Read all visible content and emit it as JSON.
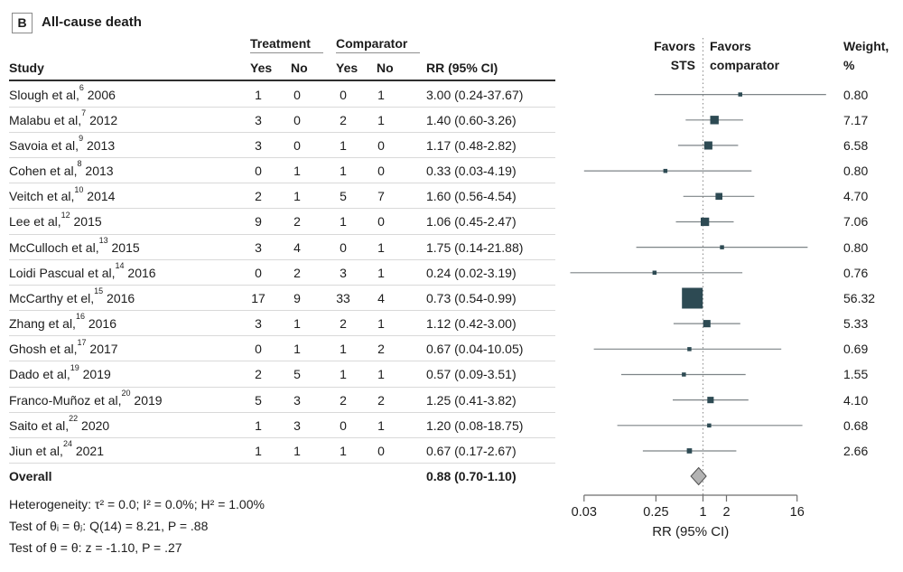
{
  "panel": {
    "label": "B",
    "title": "All-cause death"
  },
  "table": {
    "group_headers": {
      "treatment": "Treatment",
      "comparator": "Comparator"
    },
    "columns": {
      "study": "Study",
      "yes": "Yes",
      "no": "No",
      "rr": "RR (95% CI)"
    },
    "overall_label": "Overall"
  },
  "plot_header": {
    "favors_left": [
      "Favors",
      "STS"
    ],
    "favors_right": [
      "Favors",
      "comparator"
    ],
    "weight": [
      "Weight,",
      "%"
    ]
  },
  "axis": {
    "tick_labels": [
      "0.03",
      "0.25",
      "1",
      "2",
      "16"
    ],
    "label": "RR (95% CI)"
  },
  "footer": {
    "heterogeneity": "Heterogeneity: τ² = 0.0; I² = 0.0%; H² = 1.00%",
    "test_thetas": "Test of θᵢ = θⱼ: Q(14) = 8.21, P = .88",
    "test_z": "Test of θ = θ: z = -1.10, P = .27"
  },
  "colors": {
    "square": "#2d4a53",
    "ci_line": "#7d8487",
    "diamond_fill": "#b3b3b3",
    "diamond_stroke": "#4f4f4f",
    "ref_line": "#909090",
    "axis": "#6e6e6e",
    "text": "#1c1c1c"
  },
  "chart_data": {
    "type": "scatter",
    "subtype": "forest-plot",
    "title": "All-cause death",
    "xlabel": "RR (95% CI)",
    "x_scale": "log",
    "x_ticks": [
      0.03,
      0.25,
      1,
      2,
      16
    ],
    "ref_line": 1,
    "studies": [
      {
        "study": "Slough et al,",
        "ref": "6",
        "year": "2006",
        "t_yes": 1,
        "t_no": 0,
        "c_yes": 0,
        "c_no": 1,
        "rr": 3.0,
        "ci_low": 0.24,
        "ci_high": 37.67,
        "rr_text": "3.00 (0.24-37.67)",
        "weight": 0.8
      },
      {
        "study": "Malabu et al,",
        "ref": "7",
        "year": "2012",
        "t_yes": 3,
        "t_no": 0,
        "c_yes": 2,
        "c_no": 1,
        "rr": 1.4,
        "ci_low": 0.6,
        "ci_high": 3.26,
        "rr_text": "1.40 (0.60-3.26)",
        "weight": 7.17
      },
      {
        "study": "Savoia et al,",
        "ref": "9",
        "year": "2013",
        "t_yes": 3,
        "t_no": 0,
        "c_yes": 1,
        "c_no": 0,
        "rr": 1.17,
        "ci_low": 0.48,
        "ci_high": 2.82,
        "rr_text": "1.17 (0.48-2.82)",
        "weight": 6.58
      },
      {
        "study": "Cohen et al,",
        "ref": "8",
        "year": "2013",
        "t_yes": 0,
        "t_no": 1,
        "c_yes": 1,
        "c_no": 0,
        "rr": 0.33,
        "ci_low": 0.03,
        "ci_high": 4.19,
        "rr_text": "0.33 (0.03-4.19)",
        "weight": 0.8
      },
      {
        "study": "Veitch et al,",
        "ref": "10",
        "year": "2014",
        "t_yes": 2,
        "t_no": 1,
        "c_yes": 5,
        "c_no": 7,
        "rr": 1.6,
        "ci_low": 0.56,
        "ci_high": 4.54,
        "rr_text": "1.60 (0.56-4.54)",
        "weight": 4.7
      },
      {
        "study": "Lee et al,",
        "ref": "12",
        "year": "2015",
        "t_yes": 9,
        "t_no": 2,
        "c_yes": 1,
        "c_no": 0,
        "rr": 1.06,
        "ci_low": 0.45,
        "ci_high": 2.47,
        "rr_text": "1.06 (0.45-2.47)",
        "weight": 7.06
      },
      {
        "study": "McCulloch et al,",
        "ref": "13",
        "year": "2015",
        "t_yes": 3,
        "t_no": 4,
        "c_yes": 0,
        "c_no": 1,
        "rr": 1.75,
        "ci_low": 0.14,
        "ci_high": 21.88,
        "rr_text": "1.75 (0.14-21.88)",
        "weight": 0.8
      },
      {
        "study": "Loidi Pascual et al,",
        "ref": "14",
        "year": "2016",
        "t_yes": 0,
        "t_no": 2,
        "c_yes": 3,
        "c_no": 1,
        "rr": 0.24,
        "ci_low": 0.02,
        "ci_high": 3.19,
        "rr_text": "0.24 (0.02-3.19)",
        "weight": 0.76
      },
      {
        "study": "McCarthy et el,",
        "ref": "15",
        "year": "2016",
        "t_yes": 17,
        "t_no": 9,
        "c_yes": 33,
        "c_no": 4,
        "rr": 0.73,
        "ci_low": 0.54,
        "ci_high": 0.99,
        "rr_text": "0.73 (0.54-0.99)",
        "weight": 56.32
      },
      {
        "study": "Zhang et al,",
        "ref": "16",
        "year": "2016",
        "t_yes": 3,
        "t_no": 1,
        "c_yes": 2,
        "c_no": 1,
        "rr": 1.12,
        "ci_low": 0.42,
        "ci_high": 3.0,
        "rr_text": "1.12 (0.42-3.00)",
        "weight": 5.33
      },
      {
        "study": "Ghosh et al,",
        "ref": "17",
        "year": "2017",
        "t_yes": 0,
        "t_no": 1,
        "c_yes": 1,
        "c_no": 2,
        "rr": 0.67,
        "ci_low": 0.04,
        "ci_high": 10.05,
        "rr_text": "0.67 (0.04-10.05)",
        "weight": 0.69
      },
      {
        "study": "Dado et al,",
        "ref": "19",
        "year": "2019",
        "t_yes": 2,
        "t_no": 5,
        "c_yes": 1,
        "c_no": 1,
        "rr": 0.57,
        "ci_low": 0.09,
        "ci_high": 3.51,
        "rr_text": "0.57 (0.09-3.51)",
        "weight": 1.55
      },
      {
        "study": "Franco-Muñoz et al,",
        "ref": "20",
        "year": "2019",
        "t_yes": 5,
        "t_no": 3,
        "c_yes": 2,
        "c_no": 2,
        "rr": 1.25,
        "ci_low": 0.41,
        "ci_high": 3.82,
        "rr_text": "1.25 (0.41-3.82)",
        "weight": 4.1
      },
      {
        "study": "Saito et al,",
        "ref": "22",
        "year": "2020",
        "t_yes": 1,
        "t_no": 3,
        "c_yes": 0,
        "c_no": 1,
        "rr": 1.2,
        "ci_low": 0.08,
        "ci_high": 18.75,
        "rr_text": "1.20 (0.08-18.75)",
        "weight": 0.68
      },
      {
        "study": "Jiun et al,",
        "ref": "24",
        "year": "2021",
        "t_yes": 1,
        "t_no": 1,
        "c_yes": 1,
        "c_no": 0,
        "rr": 0.67,
        "ci_low": 0.17,
        "ci_high": 2.67,
        "rr_text": "0.67 (0.17-2.67)",
        "weight": 2.66
      }
    ],
    "overall": {
      "label": "Overall",
      "rr": 0.88,
      "ci_low": 0.7,
      "ci_high": 1.1,
      "rr_text": "0.88 (0.70-1.10)"
    }
  }
}
